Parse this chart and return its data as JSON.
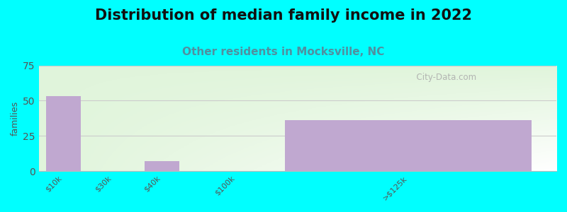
{
  "title": "Distribution of median family income in 2022",
  "subtitle": "Other residents in Mocksville, NC",
  "ylabel": "families",
  "background_color": "#00FFFF",
  "bar_color": "#c0a8d0",
  "categories": [
    "$10k",
    "$30k",
    "$40k",
    "$100k",
    ">$125k"
  ],
  "values": [
    53,
    0,
    7,
    0,
    36
  ],
  "ylim": [
    0,
    75
  ],
  "yticks": [
    0,
    25,
    50,
    75
  ],
  "title_fontsize": 15,
  "subtitle_fontsize": 11,
  "subtitle_color": "#5090a0",
  "ylabel_fontsize": 9,
  "tick_fontsize": 8,
  "watermark": "  City-Data.com",
  "bar_positions": [
    0.5,
    1.5,
    2.5,
    4.0,
    7.5
  ],
  "bar_widths": [
    0.7,
    0.7,
    0.7,
    0.7,
    5.0
  ],
  "xlim": [
    0,
    10.5
  ],
  "grid_color": "#d8e8d0",
  "plot_bg_left_color": "#d8f0c8",
  "plot_bg_right_color": "#f8f8f8"
}
